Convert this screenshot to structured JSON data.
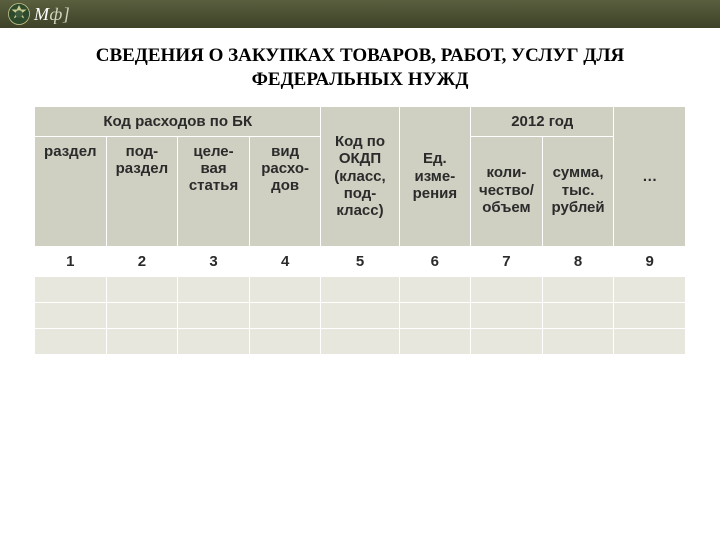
{
  "topbar": {
    "brand_a": "М",
    "brand_b": "ф]"
  },
  "title": "СВЕДЕНИЯ О ЗАКУПКАХ ТОВАРОВ, РАБОТ, УСЛУГ ДЛЯ ФЕДЕРАЛЬНЫХ НУЖД",
  "table": {
    "colors": {
      "header_bg": "#cfcfc2",
      "body_bg": "#e7e7de",
      "numrow_bg": "#ffffff",
      "border": "#ffffff",
      "text": "#2b2b2b"
    },
    "col_widths_pct": [
      11,
      11,
      11,
      11,
      12,
      11,
      11,
      11,
      11
    ],
    "header": {
      "group_bk": "Код расходов по БК",
      "bk_razdel": "раздел",
      "bk_podrazdel": "под-раздел",
      "bk_celevaya": "целе-вая статья",
      "bk_vid": "вид расхо-дов",
      "okdp": "Код по ОКДП (класс, под-класс)",
      "ed_izm": "Ед. изме-рения",
      "year_group": "2012 год",
      "year_qty": "коли-чество/объем",
      "year_sum": "сумма, тыс. рублей",
      "dots": "…"
    },
    "column_numbers": [
      "1",
      "2",
      "3",
      "4",
      "5",
      "6",
      "7",
      "8",
      "9"
    ],
    "data_rows": 3
  }
}
